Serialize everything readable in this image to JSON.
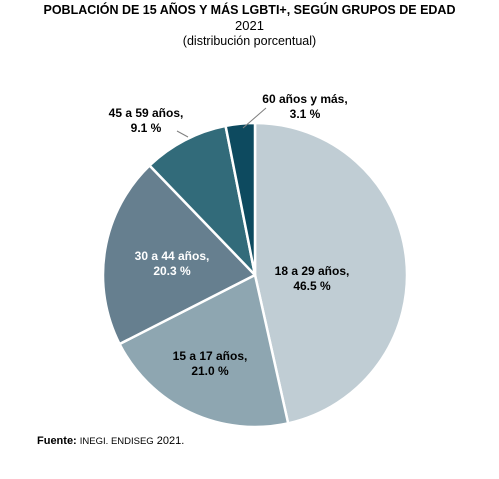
{
  "title": "POBLACIÓN DE 15 AÑOS Y MÁS LGBTI+, SEGÚN GRUPOS DE EDAD",
  "subtitle_year": "2021",
  "subtitle_note": "(distribución porcentual)",
  "source": {
    "label": "Fuente:",
    "org": "INEGI. ENDISEG",
    "year": "2021."
  },
  "chart_data": {
    "type": "pie",
    "title": "POBLACIÓN DE 15 AÑOS Y MÁS LGBTI+, SEGÚN GRUPOS DE EDAD",
    "unit": "%",
    "start_angle": "12 o'clock",
    "direction": "clockwise",
    "slices": [
      {
        "label": "18 a 29 años,",
        "value": 46.5,
        "value_text": "46.5 %",
        "color": "#c0cdd4",
        "label_color": "#000000",
        "label_position": "inside"
      },
      {
        "label": "15 a 17 años,",
        "value": 21.0,
        "value_text": "21.0 %",
        "color": "#8ea6b1",
        "label_color": "#000000",
        "label_position": "inside"
      },
      {
        "label": "30 a 44 años,",
        "value": 20.3,
        "value_text": "20.3 %",
        "color": "#667f8f",
        "label_color": "#ffffff",
        "label_position": "inside"
      },
      {
        "label": "45 a 59 años,",
        "value": 9.1,
        "value_text": "9.1 %",
        "color": "#326b7a",
        "label_color": "#000000",
        "label_position": "outside"
      },
      {
        "label": "60 años y más,",
        "value": 3.1,
        "value_text": "3.1 %",
        "color": "#0d4a5f",
        "label_color": "#000000",
        "label_position": "outside"
      }
    ]
  }
}
